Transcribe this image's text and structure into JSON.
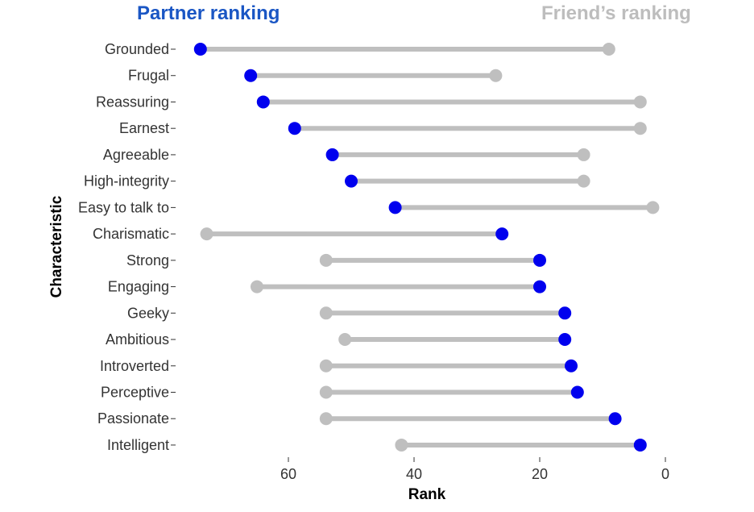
{
  "chart_data": {
    "type": "dumbbell",
    "xlabel": "Rank",
    "ylabel": "Characteristic",
    "xlim": [
      75,
      0
    ],
    "x_reversed": true,
    "x_ticks": [
      60,
      40,
      20,
      0
    ],
    "grid": false,
    "legend": {
      "partner_label": "Partner ranking",
      "friend_label": "Friend’s ranking",
      "placement": "top"
    },
    "colors": {
      "partner": "#0000ee",
      "friend": "#bfbfbf",
      "partner_title": "#1a56c4",
      "friend_title": "#bdbdbd"
    },
    "categories": [
      "Grounded",
      "Frugal",
      "Reassuring",
      "Earnest",
      "Agreeable",
      "High-integrity",
      "Easy to talk to",
      "Charismatic",
      "Strong",
      "Engaging",
      "Geeky",
      "Ambitious",
      "Introverted",
      "Perceptive",
      "Passionate",
      "Intelligent"
    ],
    "series": [
      {
        "name": "Partner ranking",
        "values": [
          74,
          66,
          64,
          59,
          53,
          50,
          43,
          26,
          20,
          20,
          16,
          16,
          15,
          14,
          8,
          4
        ]
      },
      {
        "name": "Friend’s ranking",
        "values": [
          9,
          27,
          4,
          4,
          13,
          13,
          2,
          73,
          54,
          65,
          54,
          51,
          54,
          54,
          54,
          42
        ]
      }
    ]
  }
}
